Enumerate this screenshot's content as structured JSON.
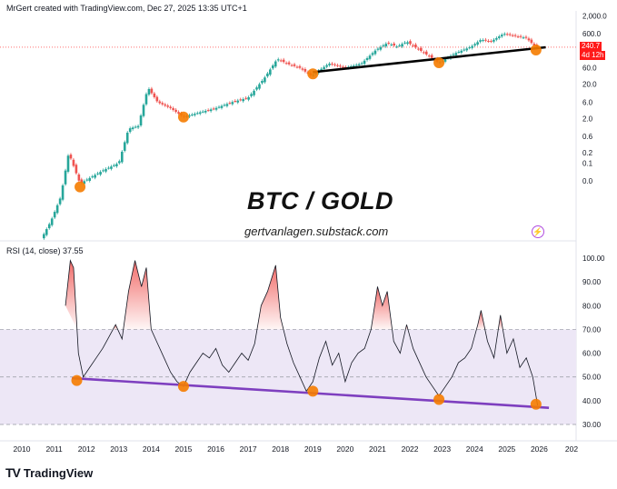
{
  "header": {
    "credit": "MrGert created with TradingView.com, Dec 27, 2025 13:35 UTC+1"
  },
  "title": "BTC / GOLD",
  "subtitle": "gertvanlagen.substack.com",
  "rsi_label": "RSI (14, close)   37.55",
  "price_badge": {
    "value": "240.7",
    "countdown": "4d 12h",
    "color": "#ff1a1a"
  },
  "brand": {
    "logo": "TV",
    "name": "TradingView"
  },
  "colors": {
    "up": "#26a69a",
    "down": "#ef5350",
    "dot": "#f57c00",
    "trend_price": "#000000",
    "trend_rsi": "#7e3fbf",
    "rsi_band": "#ede7f6",
    "overbought": "#ef5350"
  },
  "chart_data": [
    {
      "type": "candlestick",
      "scale": "log",
      "yticks": [
        "2,000.0",
        "600.0",
        "200.0",
        "60.0",
        "20.0",
        "6.0",
        "2.0",
        "0.6",
        "0.2",
        "0.1",
        "0.0"
      ],
      "last_value": 240.7,
      "trend_price": {
        "x": [
          2019.0,
          2026.2
        ],
        "y": [
          45,
          240
        ]
      },
      "lows_marked": [
        {
          "x": 2011.8,
          "y": 0.02
        },
        {
          "x": 2015.0,
          "y": 2.2
        },
        {
          "x": 2019.0,
          "y": 40
        },
        {
          "x": 2022.9,
          "y": 85
        },
        {
          "x": 2025.9,
          "y": 200
        }
      ],
      "series_path": [
        [
          2010.6,
          0.0006
        ],
        [
          2010.9,
          0.002
        ],
        [
          2011.2,
          0.01
        ],
        [
          2011.45,
          0.2
        ],
        [
          2011.8,
          0.025
        ],
        [
          2012.5,
          0.06
        ],
        [
          2013.0,
          0.1
        ],
        [
          2013.3,
          1.0
        ],
        [
          2013.6,
          1.2
        ],
        [
          2013.9,
          16
        ],
        [
          2014.2,
          6
        ],
        [
          2014.6,
          4
        ],
        [
          2015.0,
          2.2
        ],
        [
          2015.5,
          3
        ],
        [
          2016.0,
          4
        ],
        [
          2016.5,
          6
        ],
        [
          2017.0,
          8
        ],
        [
          2017.5,
          30
        ],
        [
          2017.9,
          110
        ],
        [
          2018.2,
          80
        ],
        [
          2018.6,
          60
        ],
        [
          2018.95,
          35
        ],
        [
          2019.5,
          80
        ],
        [
          2020.0,
          60
        ],
        [
          2020.5,
          80
        ],
        [
          2020.95,
          200
        ],
        [
          2021.3,
          320
        ],
        [
          2021.6,
          250
        ],
        [
          2021.9,
          350
        ],
        [
          2022.3,
          200
        ],
        [
          2022.9,
          85
        ],
        [
          2023.4,
          160
        ],
        [
          2023.9,
          250
        ],
        [
          2024.2,
          400
        ],
        [
          2024.5,
          350
        ],
        [
          2024.9,
          600
        ],
        [
          2025.3,
          500
        ],
        [
          2025.6,
          450
        ],
        [
          2025.9,
          240
        ],
        [
          2026.0,
          240.7
        ]
      ]
    },
    {
      "type": "line",
      "name": "RSI",
      "yticks": [
        100,
        90,
        80,
        70,
        60,
        50,
        40,
        30
      ],
      "ylim": [
        27,
        103
      ],
      "overbought": 70,
      "midline": 50,
      "oversold": 30,
      "trend_rsi": {
        "x": [
          2011.55,
          2026.3
        ],
        "y": [
          49.5,
          37
        ]
      },
      "lows_marked": [
        {
          "x": 2011.7,
          "y": 48.5
        },
        {
          "x": 2015.0,
          "y": 46
        },
        {
          "x": 2019.0,
          "y": 44
        },
        {
          "x": 2022.9,
          "y": 40.5
        },
        {
          "x": 2025.9,
          "y": 38.5
        }
      ],
      "x": [
        2011.35,
        2011.5,
        2011.6,
        2011.75,
        2011.9,
        2012.1,
        2012.3,
        2012.5,
        2012.7,
        2012.9,
        2013.1,
        2013.3,
        2013.5,
        2013.7,
        2013.85,
        2014.0,
        2014.2,
        2014.4,
        2014.6,
        2014.8,
        2015.0,
        2015.2,
        2015.4,
        2015.6,
        2015.8,
        2016.0,
        2016.2,
        2016.4,
        2016.6,
        2016.8,
        2017.0,
        2017.2,
        2017.4,
        2017.6,
        2017.85,
        2018.0,
        2018.2,
        2018.4,
        2018.6,
        2018.8,
        2019.0,
        2019.2,
        2019.4,
        2019.6,
        2019.8,
        2020.0,
        2020.2,
        2020.4,
        2020.6,
        2020.8,
        2021.0,
        2021.15,
        2021.3,
        2021.5,
        2021.7,
        2021.9,
        2022.1,
        2022.3,
        2022.5,
        2022.7,
        2022.9,
        2023.1,
        2023.3,
        2023.5,
        2023.7,
        2023.9,
        2024.1,
        2024.2,
        2024.4,
        2024.6,
        2024.8,
        2025.0,
        2025.2,
        2025.4,
        2025.6,
        2025.8,
        2025.95
      ],
      "values": [
        80,
        99,
        96,
        60,
        50,
        54,
        58,
        62,
        67,
        72,
        66,
        86,
        99,
        88,
        96,
        70,
        64,
        58,
        52,
        48,
        46,
        52,
        56,
        60,
        58,
        62,
        55,
        52,
        56,
        60,
        57,
        64,
        80,
        86,
        97,
        75,
        64,
        56,
        50,
        44,
        48,
        58,
        65,
        55,
        60,
        48,
        56,
        60,
        62,
        70,
        88,
        80,
        86,
        65,
        60,
        72,
        62,
        56,
        50,
        46,
        42,
        46,
        50,
        56,
        58,
        62,
        72,
        78,
        65,
        58,
        76,
        60,
        66,
        54,
        58,
        50,
        38
      ]
    }
  ]
}
